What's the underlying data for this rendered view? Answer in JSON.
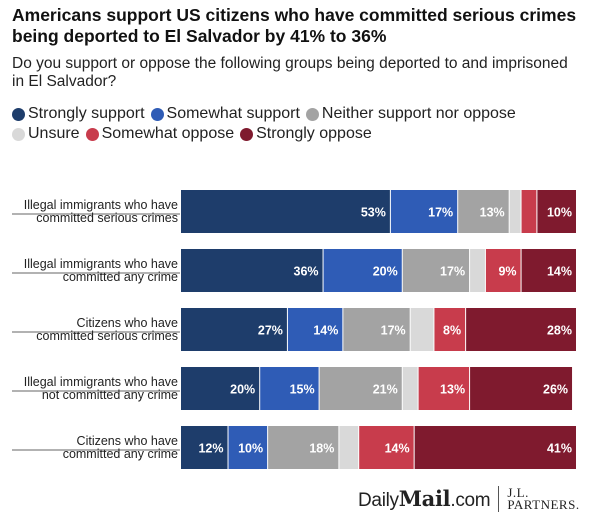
{
  "title": "Americans support US citizens who have committed serious crimes being deported to El Salvador by 41% to 36%",
  "subtitle": "Do you support or oppose the following groups being deported to and imprisoned in El Salvador?",
  "footer": {
    "dailymail_prefix": "Daily",
    "dailymail_bold": "Mail",
    "dailymail_suffix": ".com",
    "jl_line1": "J.L.",
    "jl_line2": "PARTNERS."
  },
  "chart_data": {
    "type": "bar",
    "orientation": "horizontal",
    "stacked": true,
    "legend_position": "top",
    "grid": false,
    "xlim": [
      0,
      100
    ],
    "categories": [
      [
        "Illegal immigrants who have",
        "committed serious crimes"
      ],
      [
        "Illegal immigrants who have",
        "committed any crime"
      ],
      [
        "Citizens who have",
        "committed serious crimes"
      ],
      [
        "Illegal immigrants who have",
        "not committed any crime"
      ],
      [
        "Citizens who have",
        "committed any crime"
      ]
    ],
    "series": [
      {
        "name": "Strongly support",
        "color": "#1e3d6b",
        "values": [
          53,
          36,
          27,
          20,
          12
        ]
      },
      {
        "name": "Somewhat support",
        "color": "#2f5cb6",
        "values": [
          17,
          20,
          14,
          15,
          10
        ]
      },
      {
        "name": "Neither support nor oppose",
        "color": "#a3a3a3",
        "values": [
          13,
          17,
          17,
          21,
          18
        ]
      },
      {
        "name": "Unsure",
        "color": "#d9d9d9",
        "values": [
          3,
          4,
          6,
          4,
          5
        ]
      },
      {
        "name": "Somewhat oppose",
        "color": "#c83c4c",
        "values": [
          4,
          9,
          8,
          13,
          14
        ]
      },
      {
        "name": "Strongly oppose",
        "color": "#7f1a2e",
        "values": [
          10,
          14,
          28,
          26,
          41
        ]
      }
    ],
    "data_labels": [
      [
        "53%",
        "17%",
        "13%",
        "",
        "",
        "10%"
      ],
      [
        "36%",
        "20%",
        "17%",
        "",
        "9%",
        "14%"
      ],
      [
        "27%",
        "14%",
        "17%",
        "",
        "8%",
        "28%"
      ],
      [
        "20%",
        "15%",
        "21%",
        "",
        "13%",
        "26%"
      ],
      [
        "12%",
        "10%",
        "18%",
        "",
        "14%",
        "41%"
      ]
    ]
  }
}
